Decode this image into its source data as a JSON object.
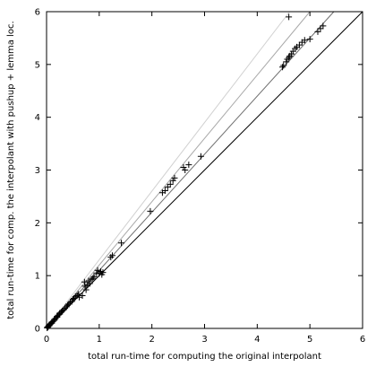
{
  "chart_data": {
    "type": "scatter",
    "title": "",
    "xlabel": "total run-time for computing the original interpolant",
    "ylabel": "total run-time for comp. the interpolant with pushup + lemma loc.",
    "xlim": [
      0,
      6
    ],
    "ylim": [
      0,
      6
    ],
    "xticks": [
      "0",
      "1",
      "2",
      "3",
      "4",
      "5",
      "6"
    ],
    "yticks": [
      "0",
      "1",
      "2",
      "3",
      "4",
      "5",
      "6"
    ],
    "grid": false,
    "legend": "none",
    "reference_lines": [
      {
        "slope": 1.0,
        "color": "#000000"
      },
      {
        "slope": 1.1,
        "color": "#707070"
      },
      {
        "slope": 1.2,
        "color": "#a8a8a8"
      },
      {
        "slope": 1.3,
        "color": "#d0d0d0"
      }
    ],
    "series": [
      {
        "marker": "+",
        "color": "#000000",
        "points": [
          [
            0.01,
            0.01
          ],
          [
            0.02,
            0.02
          ],
          [
            0.02,
            0.03
          ],
          [
            0.03,
            0.03
          ],
          [
            0.04,
            0.05
          ],
          [
            0.05,
            0.05
          ],
          [
            0.05,
            0.06
          ],
          [
            0.06,
            0.07
          ],
          [
            0.08,
            0.09
          ],
          [
            0.1,
            0.1
          ],
          [
            0.1,
            0.12
          ],
          [
            0.12,
            0.13
          ],
          [
            0.14,
            0.15
          ],
          [
            0.15,
            0.17
          ],
          [
            0.17,
            0.19
          ],
          [
            0.2,
            0.21
          ],
          [
            0.2,
            0.23
          ],
          [
            0.22,
            0.25
          ],
          [
            0.25,
            0.27
          ],
          [
            0.25,
            0.29
          ],
          [
            0.28,
            0.31
          ],
          [
            0.3,
            0.33
          ],
          [
            0.32,
            0.35
          ],
          [
            0.35,
            0.38
          ],
          [
            0.38,
            0.41
          ],
          [
            0.4,
            0.44
          ],
          [
            0.42,
            0.46
          ],
          [
            0.45,
            0.49
          ],
          [
            0.48,
            0.51
          ],
          [
            0.5,
            0.55
          ],
          [
            0.52,
            0.57
          ],
          [
            0.55,
            0.6
          ],
          [
            0.58,
            0.62
          ],
          [
            0.6,
            0.65
          ],
          [
            0.62,
            0.59
          ],
          [
            0.68,
            0.62
          ],
          [
            0.72,
            0.88
          ],
          [
            0.73,
            0.8
          ],
          [
            0.75,
            0.73
          ],
          [
            0.78,
            0.82
          ],
          [
            0.8,
            0.9
          ],
          [
            0.82,
            0.85
          ],
          [
            0.85,
            0.93
          ],
          [
            0.88,
            0.95
          ],
          [
            0.9,
            0.98
          ],
          [
            0.95,
            1.05
          ],
          [
            0.97,
            1.1
          ],
          [
            1.0,
            1.04
          ],
          [
            1.03,
            1.08
          ],
          [
            1.05,
            1.02
          ],
          [
            1.07,
            1.06
          ],
          [
            1.22,
            1.35
          ],
          [
            1.25,
            1.38
          ],
          [
            1.42,
            1.62
          ],
          [
            1.97,
            2.22
          ],
          [
            2.2,
            2.57
          ],
          [
            2.25,
            2.61
          ],
          [
            2.3,
            2.68
          ],
          [
            2.35,
            2.73
          ],
          [
            2.4,
            2.8
          ],
          [
            2.43,
            2.85
          ],
          [
            2.6,
            3.05
          ],
          [
            2.63,
            3.0
          ],
          [
            2.7,
            3.1
          ],
          [
            2.93,
            3.26
          ],
          [
            4.48,
            4.95
          ],
          [
            4.5,
            4.98
          ],
          [
            4.55,
            5.05
          ],
          [
            4.57,
            5.1
          ],
          [
            4.6,
            5.13
          ],
          [
            4.62,
            5.16
          ],
          [
            4.65,
            5.2
          ],
          [
            4.68,
            5.25
          ],
          [
            4.72,
            5.3
          ],
          [
            4.75,
            5.33
          ],
          [
            4.8,
            5.37
          ],
          [
            4.85,
            5.42
          ],
          [
            4.9,
            5.46
          ],
          [
            5.0,
            5.48
          ],
          [
            5.15,
            5.62
          ],
          [
            5.2,
            5.68
          ],
          [
            5.25,
            5.73
          ],
          [
            4.6,
            5.9
          ]
        ]
      }
    ]
  }
}
